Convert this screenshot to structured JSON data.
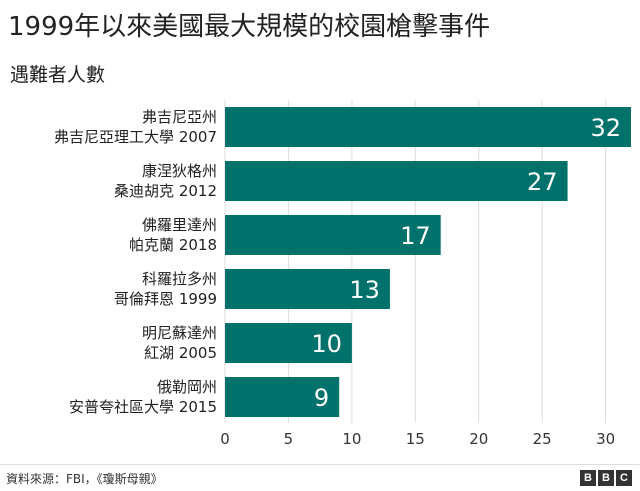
{
  "chart_data": {
    "type": "bar",
    "orientation": "horizontal",
    "title": "1999年以來美國最大規模的校園槍擊事件",
    "subtitle": "遇難者人數",
    "categories": [
      [
        "弗吉尼亞州",
        "弗吉尼亞理工大學 2007"
      ],
      [
        "康涅狄格州",
        "桑迪胡克 2012"
      ],
      [
        "佛羅里達州",
        "帕克蘭 2018"
      ],
      [
        "科羅拉多州",
        "哥倫拜恩 1999"
      ],
      [
        "明尼蘇達州",
        "紅湖 2005"
      ],
      [
        "俄勒岡州",
        "安普夸社區大學 2015"
      ]
    ],
    "values": [
      32,
      27,
      17,
      13,
      10,
      9
    ],
    "xlim": [
      0,
      32
    ],
    "xticks": [
      0,
      5,
      10,
      15,
      20,
      25,
      30
    ],
    "bar_color": "#00716b",
    "grid": true,
    "source": "資料來源：FBI，《瓊斯母親》"
  },
  "brand": {
    "letters": [
      "B",
      "B",
      "C"
    ]
  }
}
